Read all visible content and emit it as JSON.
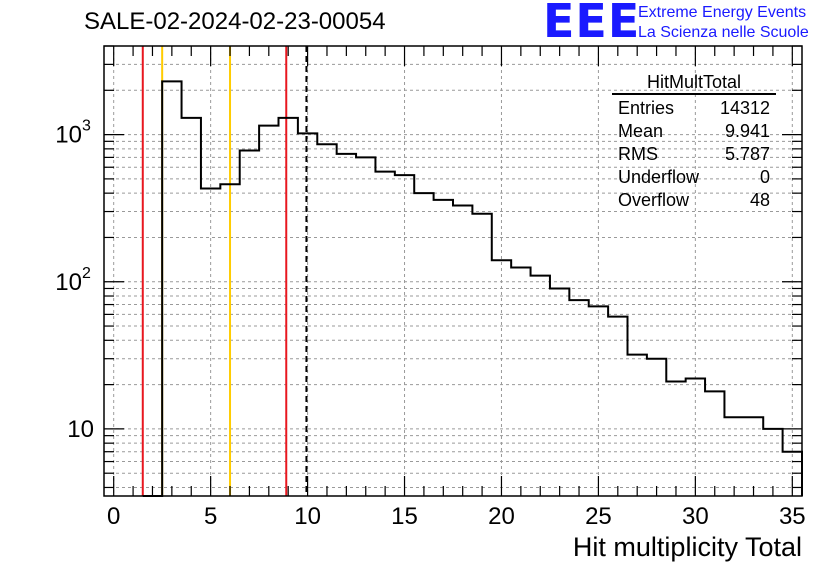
{
  "title": "SALE-02-2024-02-23-00054",
  "logo": {
    "mark": "EEE",
    "line1": "Extreme Energy Events",
    "line2": "La Scienza nelle Scuole"
  },
  "stats": {
    "name": "HitMultTotal",
    "rows": [
      {
        "label": "Entries",
        "value": "14312"
      },
      {
        "label": "Mean",
        "value": "9.941"
      },
      {
        "label": "RMS",
        "value": "5.787"
      },
      {
        "label": "Underflow",
        "value": "0"
      },
      {
        "label": "Overflow",
        "value": "48"
      }
    ]
  },
  "chart_data": {
    "type": "histogram",
    "xlabel": "Hit multiplicity Total",
    "ylabel": "",
    "xlim": [
      -0.5,
      35.5
    ],
    "ylim": [
      3.5,
      4000
    ],
    "yscale": "log",
    "grid": true,
    "xticks": [
      0,
      5,
      10,
      15,
      20,
      25,
      30,
      35
    ],
    "yticks": [
      {
        "value": 10,
        "label": "10"
      },
      {
        "value": 100,
        "label": "10",
        "sup": "2"
      },
      {
        "value": 1000,
        "label": "10",
        "sup": "3"
      }
    ],
    "bin_width": 1,
    "bins": [
      {
        "x": 2,
        "y": 0
      },
      {
        "x": 3,
        "y": 2300
      },
      {
        "x": 4,
        "y": 1300
      },
      {
        "x": 5,
        "y": 430
      },
      {
        "x": 6,
        "y": 460
      },
      {
        "x": 7,
        "y": 780
      },
      {
        "x": 8,
        "y": 1150
      },
      {
        "x": 9,
        "y": 1300
      },
      {
        "x": 10,
        "y": 1020
      },
      {
        "x": 11,
        "y": 860
      },
      {
        "x": 12,
        "y": 740
      },
      {
        "x": 13,
        "y": 700
      },
      {
        "x": 14,
        "y": 560
      },
      {
        "x": 15,
        "y": 530
      },
      {
        "x": 16,
        "y": 400
      },
      {
        "x": 17,
        "y": 360
      },
      {
        "x": 18,
        "y": 330
      },
      {
        "x": 19,
        "y": 290
      },
      {
        "x": 20,
        "y": 140
      },
      {
        "x": 21,
        "y": 125
      },
      {
        "x": 22,
        "y": 110
      },
      {
        "x": 23,
        "y": 90
      },
      {
        "x": 24,
        "y": 75
      },
      {
        "x": 25,
        "y": 68
      },
      {
        "x": 26,
        "y": 58
      },
      {
        "x": 27,
        "y": 32
      },
      {
        "x": 28,
        "y": 30
      },
      {
        "x": 29,
        "y": 21
      },
      {
        "x": 30,
        "y": 22
      },
      {
        "x": 31,
        "y": 18
      },
      {
        "x": 32,
        "y": 12
      },
      {
        "x": 33,
        "y": 12
      },
      {
        "x": 34,
        "y": 10
      },
      {
        "x": 35,
        "y": 7
      }
    ],
    "vlines": [
      {
        "x": 1.5,
        "color": "#e8171f",
        "style": "solid"
      },
      {
        "x": 2.5,
        "color": "#ffcc00",
        "style": "solid"
      },
      {
        "x": 6,
        "color": "#ffcc00",
        "style": "solid"
      },
      {
        "x": 8.9,
        "color": "#e8171f",
        "style": "solid"
      },
      {
        "x": 9.941,
        "color": "#000000",
        "style": "dashed"
      }
    ]
  }
}
